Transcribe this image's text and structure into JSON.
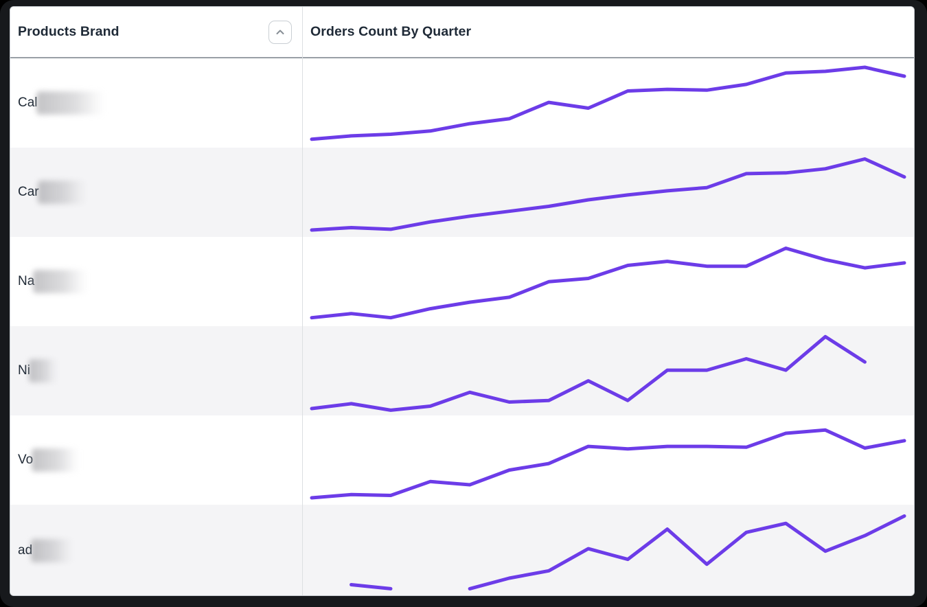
{
  "table": {
    "columns": [
      {
        "label": "Products Brand",
        "sortable": true,
        "sort_icon": "chevron-up-icon"
      },
      {
        "label": "Orders Count By Quarter",
        "sortable": true
      }
    ],
    "rows": [
      {
        "brand_prefix": "Cal",
        "redacted": true,
        "blur_width": 100
      },
      {
        "brand_prefix": "Car",
        "redacted": true,
        "blur_width": 72
      },
      {
        "brand_prefix": "Na",
        "redacted": true,
        "blur_width": 80
      },
      {
        "brand_prefix": "Ni",
        "redacted": true,
        "blur_width": 42
      },
      {
        "brand_prefix": "Vo",
        "redacted": true,
        "blur_width": 70
      },
      {
        "brand_prefix": "ad",
        "redacted": true,
        "blur_width": 62
      }
    ]
  },
  "chart_data": {
    "type": "line",
    "title": "Orders Count By Quarter",
    "xlabel": "",
    "ylabel": "",
    "x_description": "16 consecutive quarters (tick labels not shown in UI)",
    "value_scale": "relative order count, 0-100 estimated from sparkline pixel heights (no axis labels visible)",
    "legend": "none",
    "grid": false,
    "ylim": [
      0,
      100
    ],
    "series": [
      {
        "name": "Cal… (blurred)",
        "values": [
          7,
          11,
          13,
          17,
          26,
          32,
          52,
          45,
          66,
          68,
          67,
          74,
          88,
          90,
          95,
          84
        ]
      },
      {
        "name": "Car… (blurred)",
        "values": [
          5,
          8,
          6,
          15,
          22,
          28,
          34,
          42,
          48,
          53,
          57,
          74,
          75,
          80,
          92,
          70
        ]
      },
      {
        "name": "Na… (blurred)",
        "values": [
          7,
          12,
          7,
          18,
          26,
          32,
          51,
          55,
          71,
          76,
          70,
          70,
          92,
          78,
          68,
          74
        ]
      },
      {
        "name": "Ni… (blurred)",
        "values": [
          5,
          11,
          3,
          8,
          25,
          13,
          15,
          39,
          15,
          52,
          52,
          66,
          52,
          93,
          62,
          null
        ]
      },
      {
        "name": "Vo… (blurred)",
        "values": [
          5,
          9,
          8,
          25,
          21,
          39,
          47,
          68,
          65,
          68,
          68,
          67,
          84,
          88,
          66,
          75
        ]
      },
      {
        "name": "ad… (blurred)",
        "values": [
          null,
          8,
          3,
          null,
          3,
          16,
          25,
          52,
          39,
          76,
          33,
          72,
          83,
          49,
          68,
          92
        ]
      }
    ]
  },
  "colors": {
    "sparkline": "#6c3ce8",
    "row_alt_bg": "#f4f4f6",
    "row_bg": "#ffffff",
    "header_text": "#1f2a37",
    "header_border": "#999fa6",
    "card_border": "#c6cbd0",
    "column_divider": "#dcdfe2",
    "frame": "#17191c",
    "sort_icon": "#878e95"
  }
}
